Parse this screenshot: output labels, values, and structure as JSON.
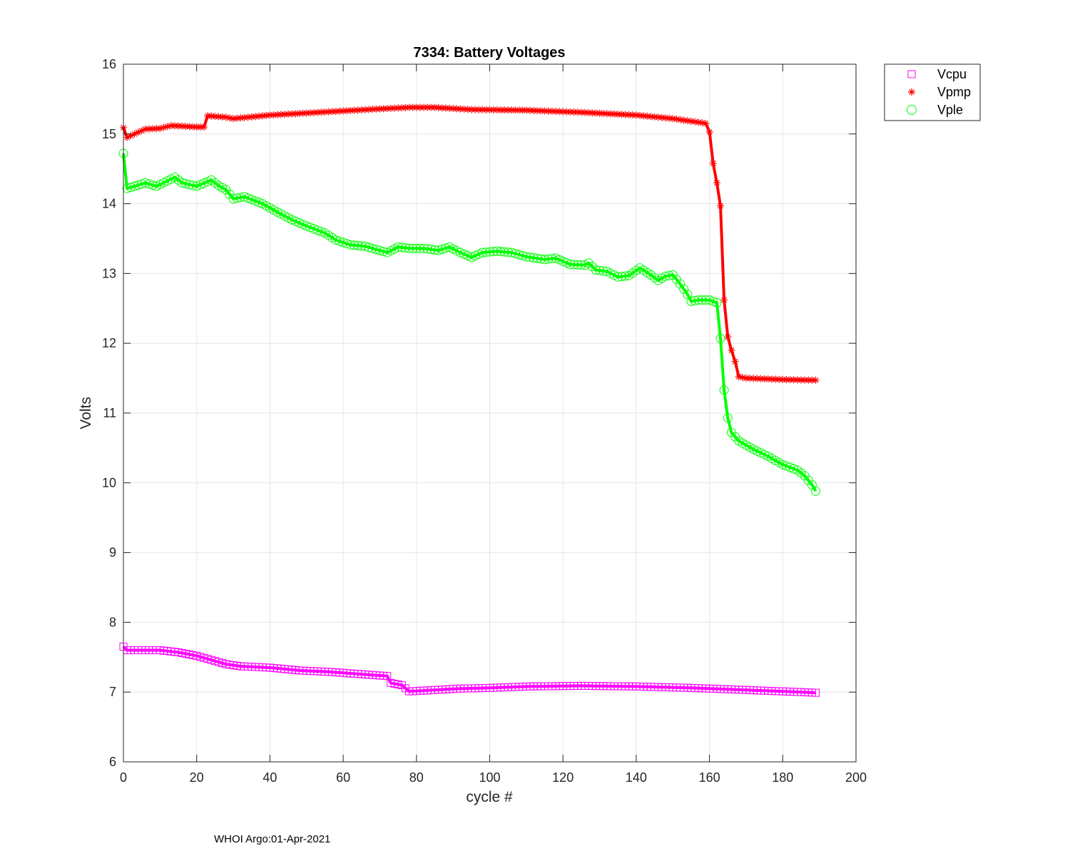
{
  "chart_data": {
    "type": "line",
    "title": "7334: Battery Voltages",
    "xlabel": "cycle #",
    "ylabel": "Volts",
    "xlim": [
      0,
      200
    ],
    "ylim": [
      6,
      16
    ],
    "xticks": [
      0,
      20,
      40,
      60,
      80,
      100,
      120,
      140,
      160,
      180,
      200
    ],
    "yticks": [
      6,
      7,
      8,
      9,
      10,
      11,
      12,
      13,
      14,
      15,
      16
    ],
    "grid": true,
    "legend_position": "outside top-right",
    "series": [
      {
        "name": "Vcpu",
        "color": "#ff00ff",
        "marker": "square",
        "points": [
          [
            0,
            7.65
          ],
          [
            1,
            7.6
          ],
          [
            5,
            7.6
          ],
          [
            10,
            7.6
          ],
          [
            15,
            7.57
          ],
          [
            20,
            7.52
          ],
          [
            24,
            7.46
          ],
          [
            28,
            7.4
          ],
          [
            32,
            7.37
          ],
          [
            40,
            7.35
          ],
          [
            48,
            7.31
          ],
          [
            56,
            7.29
          ],
          [
            64,
            7.26
          ],
          [
            72,
            7.23
          ],
          [
            73,
            7.13
          ],
          [
            76,
            7.1
          ],
          [
            78,
            7.01
          ],
          [
            85,
            7.03
          ],
          [
            92,
            7.05
          ],
          [
            100,
            7.06
          ],
          [
            110,
            7.08
          ],
          [
            125,
            7.09
          ],
          [
            140,
            7.08
          ],
          [
            155,
            7.06
          ],
          [
            165,
            7.04
          ],
          [
            175,
            7.02
          ],
          [
            185,
            7.0
          ],
          [
            189,
            6.99
          ]
        ]
      },
      {
        "name": "Vpmp",
        "color": "#ff0000",
        "marker": "asterisk",
        "points": [
          [
            0,
            15.09
          ],
          [
            1,
            14.95
          ],
          [
            3,
            15.0
          ],
          [
            6,
            15.07
          ],
          [
            10,
            15.08
          ],
          [
            13,
            15.12
          ],
          [
            20,
            15.1
          ],
          [
            22,
            15.1
          ],
          [
            23,
            15.26
          ],
          [
            28,
            15.24
          ],
          [
            30,
            15.22
          ],
          [
            40,
            15.27
          ],
          [
            50,
            15.3
          ],
          [
            60,
            15.33
          ],
          [
            70,
            15.36
          ],
          [
            78,
            15.38
          ],
          [
            85,
            15.38
          ],
          [
            95,
            15.35
          ],
          [
            110,
            15.34
          ],
          [
            125,
            15.31
          ],
          [
            140,
            15.27
          ],
          [
            150,
            15.22
          ],
          [
            158,
            15.16
          ],
          [
            159,
            15.15
          ],
          [
            160,
            15.03
          ],
          [
            161,
            14.58
          ],
          [
            162,
            14.3
          ],
          [
            163,
            13.97
          ],
          [
            164,
            12.62
          ],
          [
            165,
            12.09
          ],
          [
            166,
            11.9
          ],
          [
            167,
            11.74
          ],
          [
            168,
            11.52
          ],
          [
            170,
            11.5
          ],
          [
            180,
            11.48
          ],
          [
            189,
            11.47
          ]
        ]
      },
      {
        "name": "Vple",
        "color": "#00ff00",
        "marker": "circle",
        "points": [
          [
            0,
            14.72
          ],
          [
            1,
            14.22
          ],
          [
            3,
            14.25
          ],
          [
            6,
            14.3
          ],
          [
            9,
            14.25
          ],
          [
            11,
            14.3
          ],
          [
            14,
            14.38
          ],
          [
            16,
            14.3
          ],
          [
            20,
            14.25
          ],
          [
            24,
            14.34
          ],
          [
            26,
            14.26
          ],
          [
            28,
            14.2
          ],
          [
            30,
            14.07
          ],
          [
            33,
            14.1
          ],
          [
            38,
            14.0
          ],
          [
            42,
            13.88
          ],
          [
            46,
            13.77
          ],
          [
            50,
            13.68
          ],
          [
            55,
            13.58
          ],
          [
            58,
            13.48
          ],
          [
            62,
            13.41
          ],
          [
            66,
            13.39
          ],
          [
            70,
            13.33
          ],
          [
            72,
            13.3
          ],
          [
            75,
            13.38
          ],
          [
            78,
            13.36
          ],
          [
            82,
            13.36
          ],
          [
            86,
            13.33
          ],
          [
            89,
            13.38
          ],
          [
            92,
            13.3
          ],
          [
            95,
            13.23
          ],
          [
            98,
            13.3
          ],
          [
            102,
            13.32
          ],
          [
            106,
            13.3
          ],
          [
            110,
            13.24
          ],
          [
            115,
            13.2
          ],
          [
            118,
            13.22
          ],
          [
            122,
            13.13
          ],
          [
            126,
            13.12
          ],
          [
            127,
            13.15
          ],
          [
            129,
            13.05
          ],
          [
            132,
            13.03
          ],
          [
            135,
            12.95
          ],
          [
            138,
            12.97
          ],
          [
            141,
            13.08
          ],
          [
            144,
            12.98
          ],
          [
            146,
            12.9
          ],
          [
            148,
            12.96
          ],
          [
            150,
            12.98
          ],
          [
            152,
            12.85
          ],
          [
            154,
            12.7
          ],
          [
            155,
            12.6
          ],
          [
            157,
            12.62
          ],
          [
            160,
            12.62
          ],
          [
            162,
            12.58
          ],
          [
            163,
            12.07
          ],
          [
            164,
            11.33
          ],
          [
            165,
            10.93
          ],
          [
            166,
            10.72
          ],
          [
            168,
            10.6
          ],
          [
            172,
            10.48
          ],
          [
            176,
            10.38
          ],
          [
            180,
            10.26
          ],
          [
            184,
            10.18
          ],
          [
            186,
            10.1
          ],
          [
            188,
            9.97
          ],
          [
            189,
            9.88
          ]
        ]
      }
    ]
  },
  "footer": {
    "note": "WHOI Argo:01-Apr-2021"
  }
}
